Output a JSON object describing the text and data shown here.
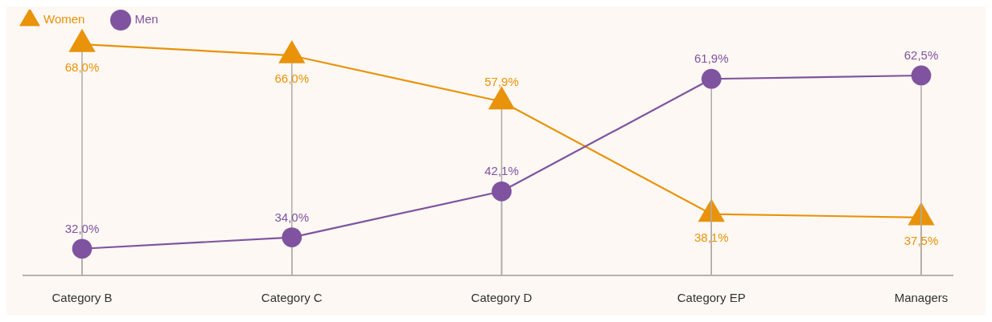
{
  "chart_data": {
    "type": "line",
    "categories": [
      "Category B",
      "Category C",
      "Category D",
      "Category EP",
      "Managers"
    ],
    "series": [
      {
        "name": "Women",
        "color": "#e8930a",
        "marker": "triangle",
        "values": [
          68.0,
          66.0,
          57.9,
          38.1,
          37.5
        ],
        "value_labels": [
          "68,0%",
          "66,0%",
          "57,9%",
          "38,1%",
          "37,5%"
        ]
      },
      {
        "name": "Men",
        "color": "#7f539f",
        "marker": "circle",
        "values": [
          32.0,
          34.0,
          42.1,
          61.9,
          62.5
        ],
        "value_labels": [
          "32,0%",
          "34,0%",
          "42,1%",
          "61,9%",
          "62,5%"
        ]
      }
    ],
    "grid": "x",
    "legend": "top left"
  }
}
